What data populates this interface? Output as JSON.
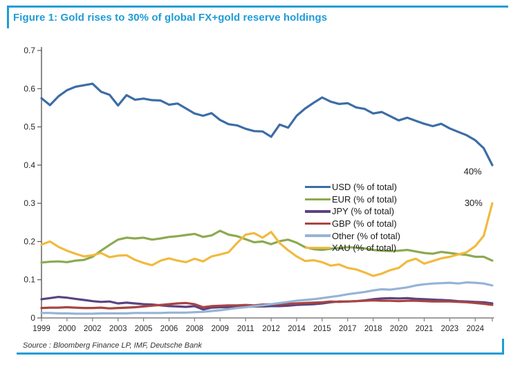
{
  "figure": {
    "title": "Figure 1: Gold rises to 30% of global FX+gold reserve holdings",
    "source": "Source : Bloomberg Finance LP, IMF, Deutsche Bank",
    "accent_color": "#1E9CD6"
  },
  "chart_data": {
    "type": "line",
    "title": "Figure 1: Gold rises to 30% of global FX+gold reserve holdings",
    "xlabel": "",
    "ylabel": "",
    "grid": false,
    "legend_position": "center-right",
    "xlim": [
      1999,
      2025.5
    ],
    "ylim": [
      0,
      0.7
    ],
    "x_start": 1999,
    "x_step": 0.5,
    "y_ticks": [
      0,
      0.1,
      0.2,
      0.3,
      0.4,
      0.5,
      0.6,
      0.7
    ],
    "y_tick_labels": [
      "0",
      "0.1",
      "0.2",
      "0.3",
      "0.4",
      "0.5",
      "0.6",
      "0.7"
    ],
    "x_ticks": [
      1999,
      2000.5,
      2002,
      2003.5,
      2005,
      2006.5,
      2008,
      2009.5,
      2011,
      2012.5,
      2014,
      2015.5,
      2017,
      2018.5,
      2020,
      2021.5,
      2023,
      2024.5
    ],
    "x_tick_labels": [
      "1999",
      "2000",
      "2002",
      "2003",
      "2005",
      "2006",
      "2008",
      "2009",
      "2011",
      "2012",
      "2014",
      "2015",
      "2017",
      "2018",
      "2020",
      "2021",
      "2023",
      "2024"
    ],
    "series": [
      {
        "id": "usd",
        "name": "USD (% of total)",
        "color": "#3C6DA6",
        "values": [
          0.575,
          0.557,
          0.58,
          0.596,
          0.605,
          0.609,
          0.613,
          0.592,
          0.584,
          0.556,
          0.583,
          0.571,
          0.574,
          0.57,
          0.569,
          0.558,
          0.561,
          0.548,
          0.535,
          0.529,
          0.536,
          0.518,
          0.507,
          0.504,
          0.495,
          0.489,
          0.488,
          0.474,
          0.506,
          0.498,
          0.529,
          0.548,
          0.563,
          0.577,
          0.566,
          0.56,
          0.562,
          0.551,
          0.547,
          0.535,
          0.539,
          0.528,
          0.517,
          0.524,
          0.516,
          0.508,
          0.502,
          0.508,
          0.496,
          0.487,
          0.478,
          0.465,
          0.444,
          0.4
        ]
      },
      {
        "id": "eur",
        "name": "EUR (% of total)",
        "color": "#8CAA50",
        "values": [
          0.145,
          0.147,
          0.148,
          0.146,
          0.15,
          0.152,
          0.16,
          0.176,
          0.191,
          0.205,
          0.21,
          0.208,
          0.21,
          0.205,
          0.208,
          0.212,
          0.214,
          0.217,
          0.22,
          0.212,
          0.216,
          0.228,
          0.218,
          0.214,
          0.206,
          0.198,
          0.2,
          0.193,
          0.201,
          0.205,
          0.197,
          0.185,
          0.18,
          0.178,
          0.181,
          0.183,
          0.185,
          0.184,
          0.182,
          0.178,
          0.176,
          0.175,
          0.176,
          0.178,
          0.174,
          0.17,
          0.168,
          0.173,
          0.17,
          0.167,
          0.165,
          0.16,
          0.16,
          0.15
        ]
      },
      {
        "id": "jpy",
        "name": "JPY (% of total)",
        "color": "#5B4382",
        "values": [
          0.049,
          0.052,
          0.055,
          0.053,
          0.05,
          0.047,
          0.044,
          0.042,
          0.043,
          0.038,
          0.04,
          0.038,
          0.036,
          0.035,
          0.033,
          0.031,
          0.03,
          0.029,
          0.031,
          0.022,
          0.027,
          0.028,
          0.028,
          0.029,
          0.029,
          0.03,
          0.03,
          0.031,
          0.031,
          0.032,
          0.034,
          0.035,
          0.036,
          0.038,
          0.041,
          0.043,
          0.043,
          0.044,
          0.046,
          0.049,
          0.051,
          0.052,
          0.051,
          0.052,
          0.05,
          0.049,
          0.048,
          0.047,
          0.046,
          0.044,
          0.043,
          0.042,
          0.041,
          0.038
        ]
      },
      {
        "id": "gbp",
        "name": "GBP (% of total)",
        "color": "#A94441",
        "values": [
          0.026,
          0.027,
          0.027,
          0.028,
          0.027,
          0.026,
          0.026,
          0.027,
          0.025,
          0.026,
          0.027,
          0.028,
          0.03,
          0.032,
          0.034,
          0.036,
          0.038,
          0.039,
          0.036,
          0.028,
          0.031,
          0.032,
          0.033,
          0.033,
          0.034,
          0.033,
          0.035,
          0.036,
          0.036,
          0.037,
          0.038,
          0.039,
          0.04,
          0.041,
          0.043,
          0.042,
          0.043,
          0.044,
          0.045,
          0.046,
          0.045,
          0.045,
          0.044,
          0.045,
          0.045,
          0.044,
          0.043,
          0.043,
          0.043,
          0.042,
          0.041,
          0.039,
          0.037,
          0.034
        ]
      },
      {
        "id": "other",
        "name": "Other (% of total)",
        "color": "#95B3D7",
        "values": [
          0.013,
          0.013,
          0.012,
          0.012,
          0.011,
          0.011,
          0.011,
          0.012,
          0.012,
          0.012,
          0.012,
          0.013,
          0.013,
          0.013,
          0.013,
          0.014,
          0.014,
          0.014,
          0.015,
          0.016,
          0.018,
          0.02,
          0.023,
          0.026,
          0.028,
          0.031,
          0.033,
          0.036,
          0.039,
          0.042,
          0.045,
          0.047,
          0.049,
          0.052,
          0.055,
          0.058,
          0.062,
          0.065,
          0.068,
          0.072,
          0.075,
          0.074,
          0.077,
          0.08,
          0.085,
          0.088,
          0.09,
          0.091,
          0.092,
          0.09,
          0.093,
          0.092,
          0.09,
          0.085
        ]
      },
      {
        "id": "xau",
        "name": "XAU (% of total)",
        "color": "#F2B93F",
        "values": [
          0.192,
          0.2,
          0.186,
          0.176,
          0.168,
          0.161,
          0.164,
          0.17,
          0.159,
          0.163,
          0.164,
          0.152,
          0.144,
          0.138,
          0.15,
          0.156,
          0.15,
          0.146,
          0.155,
          0.148,
          0.161,
          0.166,
          0.172,
          0.196,
          0.218,
          0.222,
          0.21,
          0.225,
          0.196,
          0.177,
          0.161,
          0.149,
          0.151,
          0.146,
          0.137,
          0.14,
          0.131,
          0.127,
          0.119,
          0.11,
          0.116,
          0.125,
          0.131,
          0.148,
          0.155,
          0.142,
          0.149,
          0.156,
          0.16,
          0.166,
          0.172,
          0.188,
          0.215,
          0.3
        ]
      }
    ],
    "annotations": [
      {
        "text": "40%",
        "x": 2024.35,
        "y": 0.383
      },
      {
        "text": "30%",
        "x": 2024.4,
        "y": 0.3
      }
    ]
  }
}
